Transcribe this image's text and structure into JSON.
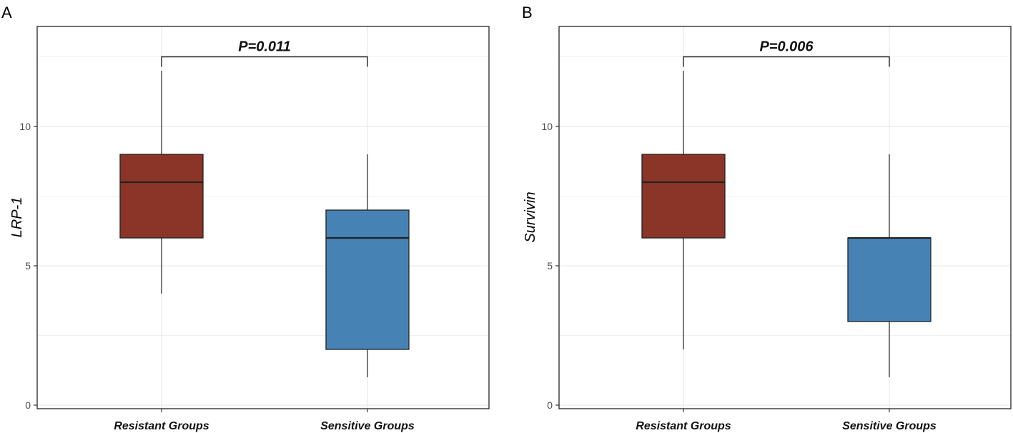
{
  "colors": {
    "resistant": "#8B3428",
    "sensitive": "#4682B4"
  },
  "chart_data": [
    {
      "type": "box",
      "panel": "A",
      "ylabel": "LRP-1",
      "xlabel": "",
      "ylim": [
        0,
        13.5
      ],
      "yticks": [
        "0",
        "5",
        "10"
      ],
      "categories": [
        "Resistant Groups",
        "Sensitive Groups"
      ],
      "boxes": [
        {
          "min": 4,
          "q1": 6,
          "median": 8,
          "q3": 9,
          "max": 12
        },
        {
          "min": 1,
          "q1": 2,
          "median": 6,
          "q3": 7,
          "max": 9
        }
      ],
      "comparison": {
        "label": "P=0.011",
        "y": 12.5
      }
    },
    {
      "type": "box",
      "panel": "B",
      "ylabel": "Survivin",
      "xlabel": "",
      "ylim": [
        0,
        13.5
      ],
      "yticks": [
        "0",
        "5",
        "10"
      ],
      "categories": [
        "Resistant Groups",
        "Sensitive Groups"
      ],
      "boxes": [
        {
          "min": 2,
          "q1": 6,
          "median": 8,
          "q3": 9,
          "max": 12
        },
        {
          "min": 1,
          "q1": 3,
          "median": 6,
          "q3": 6,
          "max": 9
        }
      ],
      "comparison": {
        "label": "P=0.006",
        "y": 12.5
      }
    }
  ]
}
